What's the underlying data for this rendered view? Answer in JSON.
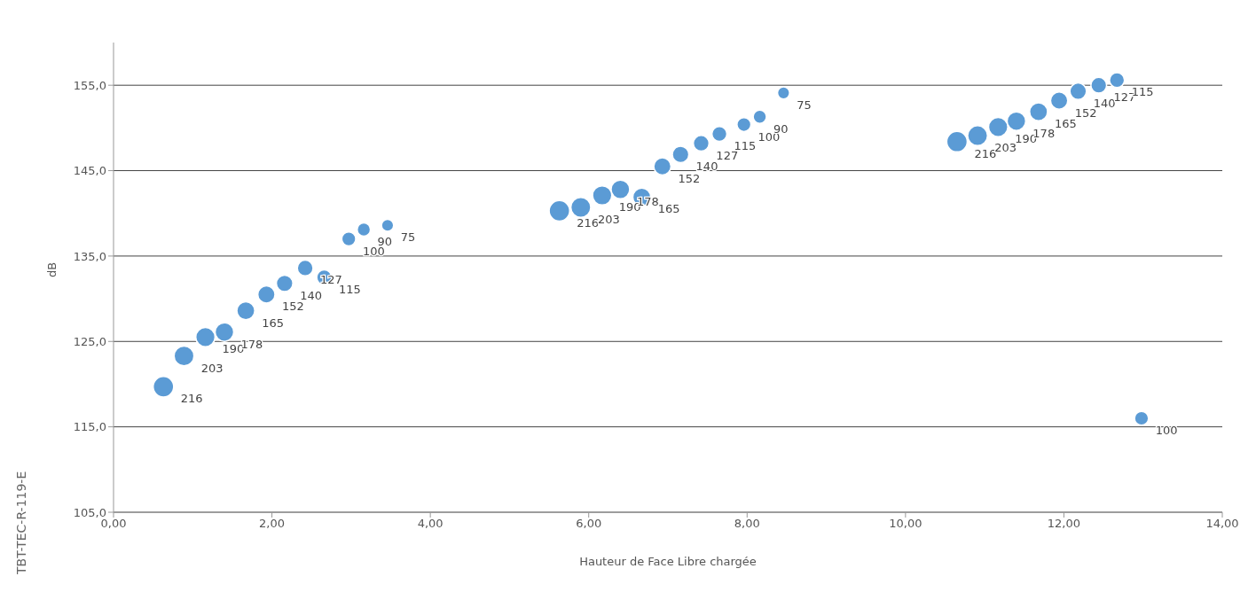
{
  "chart_data": {
    "type": "bubble",
    "xlabel": "Hauteur de Face Libre chargée",
    "ylabel": "dB",
    "annotations": [
      "TBT-TEC-R-119-E"
    ],
    "x": [
      0.63,
      0.89,
      1.16,
      1.4,
      1.67,
      1.93,
      2.16,
      2.42,
      2.66,
      2.97,
      3.16,
      3.46,
      5.63,
      5.9,
      6.17,
      6.4,
      6.67,
      6.93,
      7.16,
      7.42,
      7.65,
      7.96,
      8.16,
      8.46,
      10.65,
      10.91,
      11.17,
      11.4,
      11.68,
      11.94,
      12.18,
      12.44,
      12.67,
      12.98
    ],
    "series": [
      {
        "color": "#5b9bd5",
        "values": [
          119.7,
          123.3,
          125.5,
          126.1,
          128.6,
          130.5,
          131.8,
          133.6,
          132.5,
          137.0,
          138.1,
          138.6,
          140.3,
          140.7,
          142.1,
          142.8,
          141.9,
          145.5,
          146.9,
          148.2,
          149.3,
          150.4,
          151.3,
          154.1,
          148.4,
          149.1,
          150.1,
          150.8,
          151.9,
          153.2,
          154.3,
          155.0,
          155.6,
          116.0
        ],
        "sizes": [
          216,
          203,
          190,
          178,
          165,
          152,
          140,
          127,
          115,
          100,
          90,
          75,
          216,
          203,
          190,
          178,
          165,
          152,
          140,
          127,
          115,
          100,
          90,
          75,
          216,
          203,
          190,
          178,
          165,
          152,
          140,
          127,
          115,
          100
        ],
        "value_labels": [
          "216",
          "203",
          "190",
          "178",
          "165",
          "152",
          "140",
          "127",
          "115",
          "100",
          "90",
          "75",
          "216",
          "203",
          "190",
          "178",
          "165",
          "152",
          "140",
          "127",
          "115",
          "100",
          "90",
          "75",
          "216",
          "203",
          "190",
          "178",
          "165",
          "152",
          "140",
          "127",
          "115",
          "100"
        ]
      }
    ],
    "xlim": [
      0,
      14
    ],
    "xticks": [
      {
        "value": 0,
        "label": "0,00"
      },
      {
        "value": 2,
        "label": "2,00"
      },
      {
        "value": 4,
        "label": "4,00"
      },
      {
        "value": 6,
        "label": "6,00"
      },
      {
        "value": 8,
        "label": "8,00"
      },
      {
        "value": 10,
        "label": "10,00"
      },
      {
        "value": 12,
        "label": "12,00"
      },
      {
        "value": 14,
        "label": "14,00"
      }
    ],
    "ylim": [
      105,
      160
    ],
    "yticks": [
      {
        "value": 105,
        "label": "105,0"
      },
      {
        "value": 115,
        "label": "115,0"
      },
      {
        "value": 125,
        "label": "125,0"
      },
      {
        "value": 135,
        "label": "135,0"
      },
      {
        "value": 145,
        "label": "145,0"
      },
      {
        "value": 155,
        "label": "155,0"
      }
    ],
    "grid": "y",
    "legend": false
  }
}
